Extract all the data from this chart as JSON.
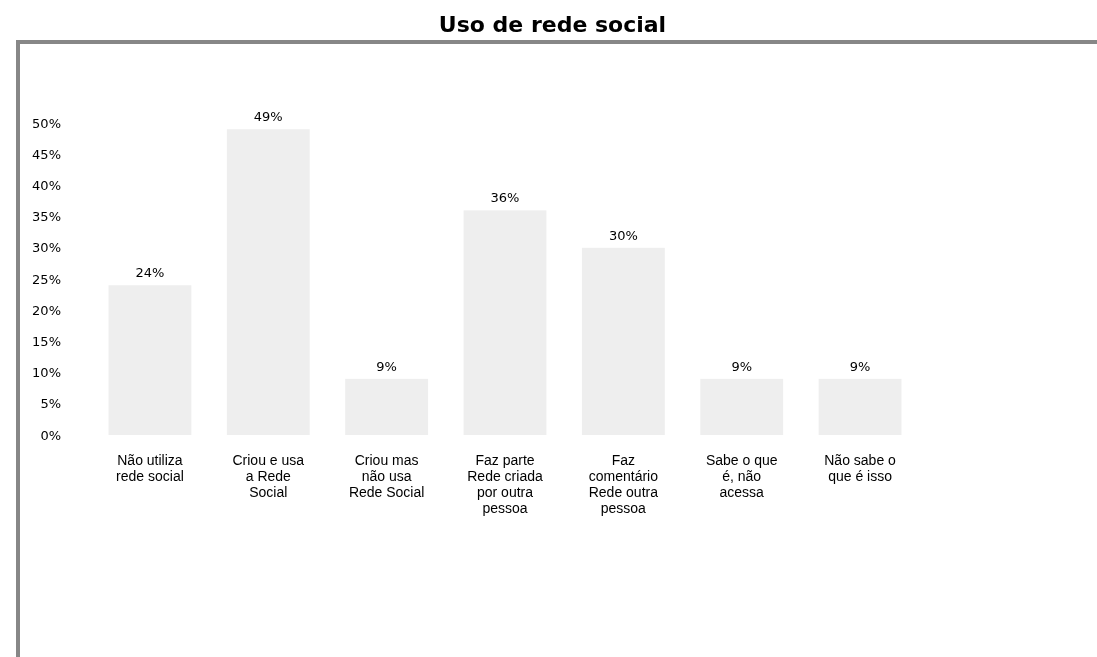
{
  "chart_data": {
    "type": "bar",
    "title": "Uso de rede social",
    "categories": [
      "Não utiliza rede social",
      "Criou e usa a Rede Social",
      "Criou mas não usa Rede Social",
      "Faz parte Rede criada por outra pessoa",
      "Faz comentário Rede outra pessoa",
      "Sabe o que é, não acessa",
      "Não sabe o que é isso"
    ],
    "values": [
      24,
      49,
      9,
      36,
      30,
      9,
      9
    ],
    "color": "#eeeeee",
    "value_labels": [
      "24%",
      "49%",
      "9%",
      "36%",
      "30%",
      "9%",
      "9%"
    ],
    "ylim": [
      0,
      50
    ],
    "yticks": [
      {
        "value": 0,
        "label": "0%"
      },
      {
        "value": 5,
        "label": "5%"
      },
      {
        "value": 10,
        "label": "10%"
      },
      {
        "value": 15,
        "label": "15%"
      },
      {
        "value": 20,
        "label": "20%"
      },
      {
        "value": 25,
        "label": "25%"
      },
      {
        "value": 30,
        "label": "30%"
      },
      {
        "value": 35,
        "label": "35%"
      },
      {
        "value": 40,
        "label": "40%"
      },
      {
        "value": 45,
        "label": "45%"
      },
      {
        "value": 50,
        "label": "50%"
      }
    ],
    "grid": false
  }
}
